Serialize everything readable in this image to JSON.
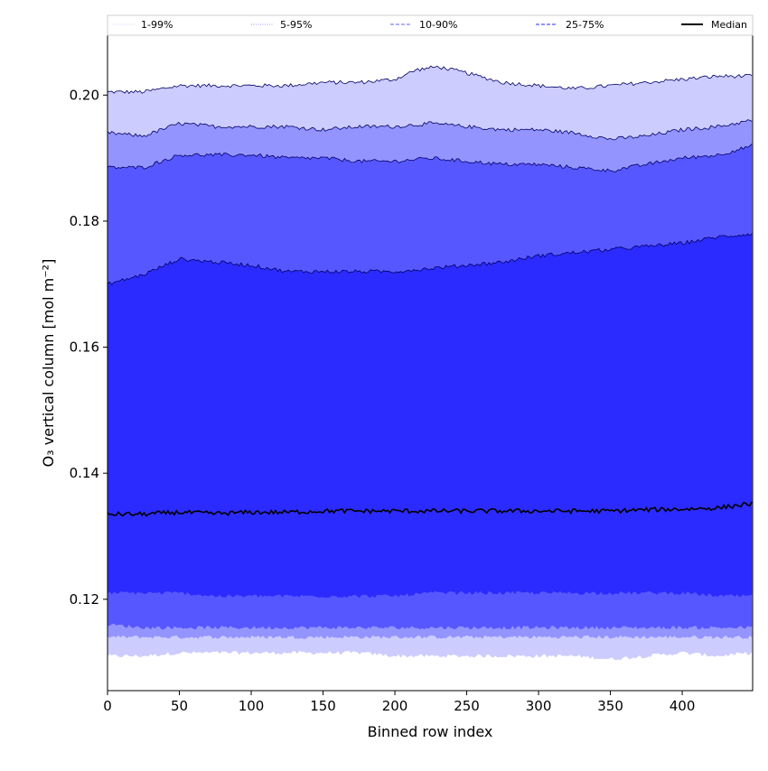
{
  "chart_data": {
    "type": "area",
    "xlabel": "Binned row index",
    "ylabel": "O₃ vertical column [mol m⁻²]",
    "xlim": [
      0,
      449
    ],
    "ylim": [
      0.1055,
      0.2095
    ],
    "x_ticks": [
      0,
      50,
      100,
      150,
      200,
      250,
      300,
      350,
      400
    ],
    "x_tick_labels": [
      "0",
      "50",
      "100",
      "150",
      "200",
      "250",
      "300",
      "350",
      "400"
    ],
    "y_ticks": [
      0.12,
      0.14,
      0.16,
      0.18,
      0.2
    ],
    "y_tick_labels": [
      "0.12",
      "0.14",
      "0.16",
      "0.18",
      "0.20"
    ],
    "grid": false,
    "legend_position": "top",
    "legend": [
      {
        "label": "1-99%",
        "style": "dotted",
        "color": "#ddddff"
      },
      {
        "label": "5-95%",
        "style": "dotted",
        "color": "#a8a8ff"
      },
      {
        "label": "10-90%",
        "style": "dashed",
        "color": "#8080ff"
      },
      {
        "label": "25-75%",
        "style": "dashed",
        "color": "#5454ff"
      },
      {
        "label": "Median",
        "style": "solid",
        "color": "#000000"
      }
    ],
    "bands": [
      {
        "name": "1-99%",
        "color": "#ccccff",
        "outline": "#000066",
        "x": [
          0,
          25,
          50,
          75,
          100,
          125,
          150,
          175,
          200,
          215,
          230,
          250,
          275,
          300,
          325,
          350,
          375,
          400,
          425,
          449
        ],
        "upper": [
          0.2005,
          0.2005,
          0.2015,
          0.2015,
          0.2015,
          0.2015,
          0.202,
          0.202,
          0.2025,
          0.204,
          0.2045,
          0.2035,
          0.202,
          0.2015,
          0.201,
          0.2015,
          0.202,
          0.2025,
          0.203,
          0.203
        ],
        "lower": [
          0.111,
          0.111,
          0.1115,
          0.1115,
          0.1115,
          0.1115,
          0.1115,
          0.1115,
          0.111,
          0.111,
          0.111,
          0.111,
          0.111,
          0.111,
          0.111,
          0.1105,
          0.111,
          0.1115,
          0.111,
          0.1115
        ]
      },
      {
        "name": "5-95%",
        "color": "#9494ff",
        "outline": "#000066",
        "x": [
          0,
          25,
          50,
          75,
          100,
          125,
          150,
          175,
          200,
          225,
          250,
          275,
          300,
          325,
          350,
          375,
          400,
          425,
          449
        ],
        "upper": [
          0.194,
          0.1935,
          0.1955,
          0.195,
          0.195,
          0.195,
          0.1945,
          0.195,
          0.195,
          0.1955,
          0.195,
          0.1945,
          0.1945,
          0.194,
          0.193,
          0.1935,
          0.1945,
          0.195,
          0.196
        ],
        "lower": [
          0.114,
          0.114,
          0.114,
          0.114,
          0.114,
          0.114,
          0.114,
          0.114,
          0.114,
          0.114,
          0.114,
          0.114,
          0.114,
          0.114,
          0.114,
          0.114,
          0.114,
          0.114,
          0.114
        ]
      },
      {
        "name": "10-90%",
        "color": "#5757ff",
        "outline": "#000066",
        "x": [
          0,
          25,
          50,
          75,
          100,
          125,
          150,
          175,
          200,
          225,
          250,
          275,
          300,
          325,
          350,
          375,
          400,
          425,
          449
        ],
        "upper": [
          0.1885,
          0.1885,
          0.1905,
          0.1905,
          0.1905,
          0.19,
          0.19,
          0.1895,
          0.1895,
          0.19,
          0.1895,
          0.189,
          0.189,
          0.1885,
          0.188,
          0.189,
          0.19,
          0.1905,
          0.192
        ],
        "lower": [
          0.116,
          0.1155,
          0.1155,
          0.1155,
          0.1155,
          0.1155,
          0.1155,
          0.1155,
          0.1155,
          0.1155,
          0.1155,
          0.1155,
          0.1155,
          0.1155,
          0.1155,
          0.1155,
          0.1155,
          0.1155,
          0.1155
        ]
      },
      {
        "name": "25-75%",
        "color": "#2b2bff",
        "outline": "#000066",
        "x": [
          0,
          25,
          50,
          75,
          100,
          125,
          150,
          175,
          200,
          225,
          250,
          275,
          300,
          325,
          350,
          375,
          400,
          425,
          449
        ],
        "upper": [
          0.17,
          0.1715,
          0.174,
          0.1735,
          0.173,
          0.172,
          0.172,
          0.172,
          0.172,
          0.1725,
          0.173,
          0.1735,
          0.1745,
          0.175,
          0.1755,
          0.176,
          0.1765,
          0.1775,
          0.178
        ],
        "lower": [
          0.121,
          0.121,
          0.121,
          0.1205,
          0.1205,
          0.1205,
          0.1205,
          0.1205,
          0.1205,
          0.121,
          0.121,
          0.121,
          0.121,
          0.121,
          0.121,
          0.121,
          0.121,
          0.1205,
          0.1205
        ]
      }
    ],
    "median": {
      "name": "Median",
      "color": "#000000",
      "x": [
        0,
        25,
        50,
        75,
        100,
        125,
        150,
        175,
        200,
        225,
        250,
        275,
        300,
        325,
        350,
        375,
        400,
        425,
        449
      ],
      "values": [
        0.1335,
        0.1335,
        0.1338,
        0.1336,
        0.1338,
        0.1338,
        0.134,
        0.134,
        0.134,
        0.134,
        0.134,
        0.134,
        0.134,
        0.134,
        0.134,
        0.1342,
        0.1343,
        0.1345,
        0.1352
      ]
    }
  }
}
